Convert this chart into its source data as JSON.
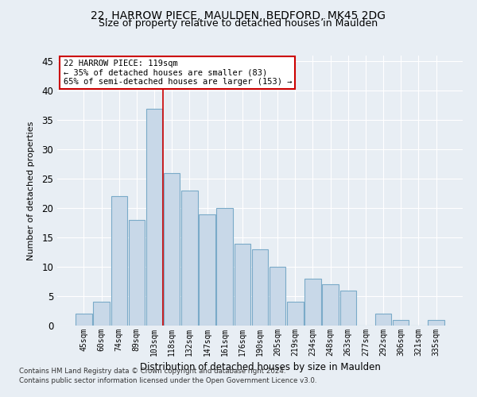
{
  "title1": "22, HARROW PIECE, MAULDEN, BEDFORD, MK45 2DG",
  "title2": "Size of property relative to detached houses in Maulden",
  "xlabel": "Distribution of detached houses by size in Maulden",
  "ylabel": "Number of detached properties",
  "categories": [
    "45sqm",
    "60sqm",
    "74sqm",
    "89sqm",
    "103sqm",
    "118sqm",
    "132sqm",
    "147sqm",
    "161sqm",
    "176sqm",
    "190sqm",
    "205sqm",
    "219sqm",
    "234sqm",
    "248sqm",
    "263sqm",
    "277sqm",
    "292sqm",
    "306sqm",
    "321sqm",
    "335sqm"
  ],
  "values": [
    2,
    4,
    22,
    18,
    37,
    26,
    23,
    19,
    20,
    14,
    13,
    10,
    4,
    8,
    7,
    6,
    0,
    2,
    1,
    0,
    1
  ],
  "bar_color": "#c8d8e8",
  "bar_edge_color": "#7aaac8",
  "vline_color": "#cc0000",
  "vline_x": 4.5,
  "annotation_line1": "22 HARROW PIECE: 119sqm",
  "annotation_line2": "← 35% of detached houses are smaller (83)",
  "annotation_line3": "65% of semi-detached houses are larger (153) →",
  "annotation_box_color": "#ffffff",
  "annotation_box_edge_color": "#cc0000",
  "ylim": [
    0,
    46
  ],
  "yticks": [
    0,
    5,
    10,
    15,
    20,
    25,
    30,
    35,
    40,
    45
  ],
  "background_color": "#e8eef4",
  "grid_color": "#ffffff",
  "title1_fontsize": 10,
  "title2_fontsize": 9,
  "footer_line1": "Contains HM Land Registry data © Crown copyright and database right 2024.",
  "footer_line2": "Contains public sector information licensed under the Open Government Licence v3.0."
}
